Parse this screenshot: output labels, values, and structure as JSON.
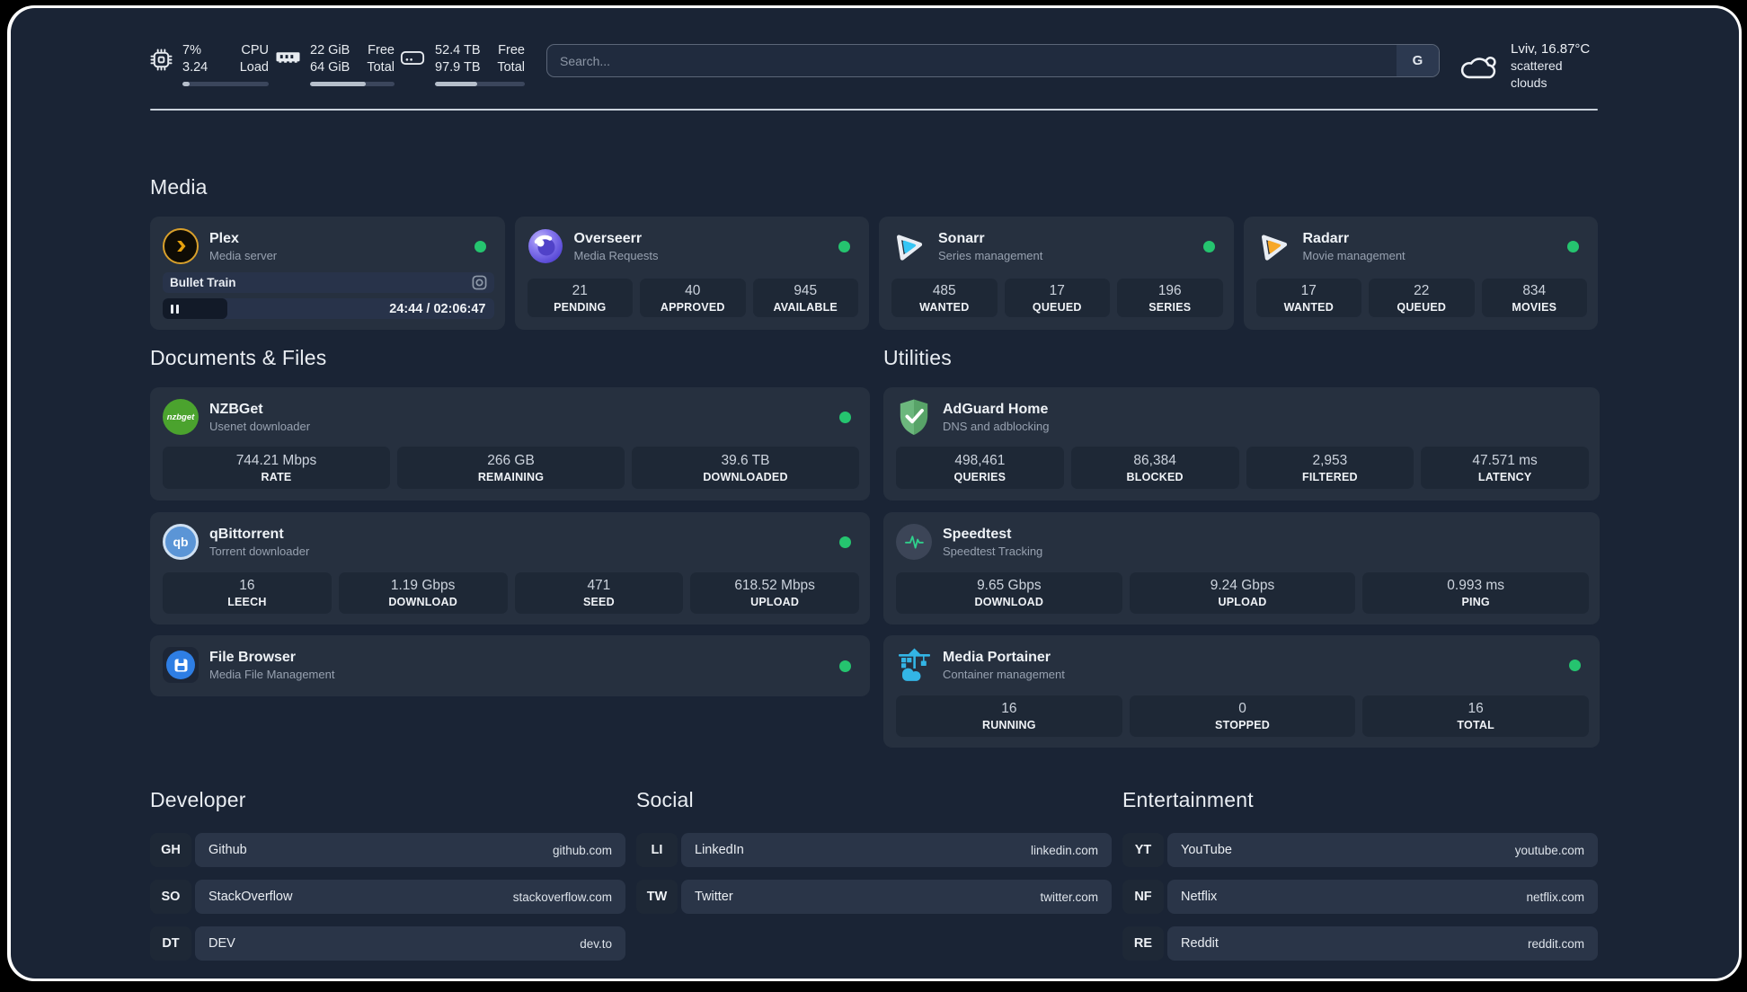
{
  "system_stats": [
    {
      "icon": "cpu-chip-icon",
      "values": [
        "7%",
        "3.24"
      ],
      "labels": [
        "CPU",
        "Load"
      ],
      "progress_pct": 8
    },
    {
      "icon": "ram-icon",
      "values": [
        "22 GiB",
        "64 GiB"
      ],
      "labels": [
        "Free",
        "Total"
      ],
      "progress_pct": 66
    },
    {
      "icon": "disk-icon",
      "values": [
        "52.4 TB",
        "97.9 TB"
      ],
      "labels": [
        "Free",
        "Total"
      ],
      "progress_pct": 47
    }
  ],
  "search": {
    "placeholder": "Search...",
    "button": "G"
  },
  "weather": {
    "line1": "Lviv, 16.87°C",
    "line2": "scattered clouds",
    "icon": "cloud-icon"
  },
  "sections": {
    "media": {
      "heading": "Media",
      "apps": [
        {
          "name": "Plex",
          "desc": "Media server",
          "online": true,
          "player": {
            "title": "Bullet Train",
            "time": "24:44 / 02:06:47",
            "progress_pct": 19.5
          }
        },
        {
          "name": "Overseerr",
          "desc": "Media Requests",
          "online": true,
          "stats": [
            {
              "value": "21",
              "label": "PENDING"
            },
            {
              "value": "40",
              "label": "APPROVED"
            },
            {
              "value": "945",
              "label": "AVAILABLE"
            }
          ]
        },
        {
          "name": "Sonarr",
          "desc": "Series management",
          "online": true,
          "stats": [
            {
              "value": "485",
              "label": "WANTED"
            },
            {
              "value": "17",
              "label": "QUEUED"
            },
            {
              "value": "196",
              "label": "SERIES"
            }
          ]
        },
        {
          "name": "Radarr",
          "desc": "Movie management",
          "online": true,
          "stats": [
            {
              "value": "17",
              "label": "WANTED"
            },
            {
              "value": "22",
              "label": "QUEUED"
            },
            {
              "value": "834",
              "label": "MOVIES"
            }
          ]
        }
      ]
    },
    "documents": {
      "heading": "Documents & Files",
      "apps": [
        {
          "name": "NZBGet",
          "desc": "Usenet downloader",
          "online": true,
          "icon_text": "nzbget",
          "stats": [
            {
              "value": "744.21 Mbps",
              "label": "RATE"
            },
            {
              "value": "266 GB",
              "label": "REMAINING"
            },
            {
              "value": "39.6 TB",
              "label": "DOWNLOADED"
            }
          ]
        },
        {
          "name": "qBittorrent",
          "desc": "Torrent downloader",
          "online": true,
          "icon_text": "qb",
          "stats": [
            {
              "value": "16",
              "label": "LEECH"
            },
            {
              "value": "1.19 Gbps",
              "label": "DOWNLOAD"
            },
            {
              "value": "471",
              "label": "SEED"
            },
            {
              "value": "618.52 Mbps",
              "label": "UPLOAD"
            }
          ]
        },
        {
          "name": "File Browser",
          "desc": "Media File Management",
          "online": true
        }
      ]
    },
    "utilities": {
      "heading": "Utilities",
      "apps": [
        {
          "name": "AdGuard Home",
          "desc": "DNS and adblocking",
          "online": false,
          "stats": [
            {
              "value": "498,461",
              "label": "QUERIES"
            },
            {
              "value": "86,384",
              "label": "BLOCKED"
            },
            {
              "value": "2,953",
              "label": "FILTERED"
            },
            {
              "value": "47.571 ms",
              "label": "LATENCY"
            }
          ]
        },
        {
          "name": "Speedtest",
          "desc": "Speedtest Tracking",
          "online": false,
          "stats": [
            {
              "value": "9.65 Gbps",
              "label": "DOWNLOAD"
            },
            {
              "value": "9.24 Gbps",
              "label": "UPLOAD"
            },
            {
              "value": "0.993 ms",
              "label": "PING"
            }
          ]
        },
        {
          "name": "Media Portainer",
          "desc": "Container management",
          "online": true,
          "stats": [
            {
              "value": "16",
              "label": "RUNNING"
            },
            {
              "value": "0",
              "label": "STOPPED"
            },
            {
              "value": "16",
              "label": "TOTAL"
            }
          ]
        }
      ]
    },
    "bookmarks": [
      {
        "heading": "Developer",
        "links": [
          {
            "abbr": "GH",
            "name": "Github",
            "url": "github.com"
          },
          {
            "abbr": "SO",
            "name": "StackOverflow",
            "url": "stackoverflow.com"
          },
          {
            "abbr": "DT",
            "name": "DEV",
            "url": "dev.to"
          }
        ]
      },
      {
        "heading": "Social",
        "links": [
          {
            "abbr": "LI",
            "name": "LinkedIn",
            "url": "linkedin.com"
          },
          {
            "abbr": "TW",
            "name": "Twitter",
            "url": "twitter.com"
          }
        ]
      },
      {
        "heading": "Entertainment",
        "links": [
          {
            "abbr": "YT",
            "name": "YouTube",
            "url": "youtube.com"
          },
          {
            "abbr": "NF",
            "name": "Netflix",
            "url": "netflix.com"
          },
          {
            "abbr": "RE",
            "name": "Reddit",
            "url": "reddit.com"
          }
        ]
      }
    ]
  },
  "colors": {
    "panel_bg": "#1a2435",
    "card_bg": "#26303f",
    "stat_bg": "#1e2836",
    "online_dot": "#25c46f",
    "plex_gold": "#e5a00d",
    "sonarr_blue": "#35c5f4",
    "radarr_amber": "#f7a727",
    "nzbget_green": "#4ba32e",
    "qbittorrent_blue": "#5b95d6",
    "filebrowser_blue": "#2e7ee4",
    "adguard_green": "#63ad74",
    "speedtest_green": "#2fd08c",
    "portainer_cyan": "#33b5e5"
  }
}
